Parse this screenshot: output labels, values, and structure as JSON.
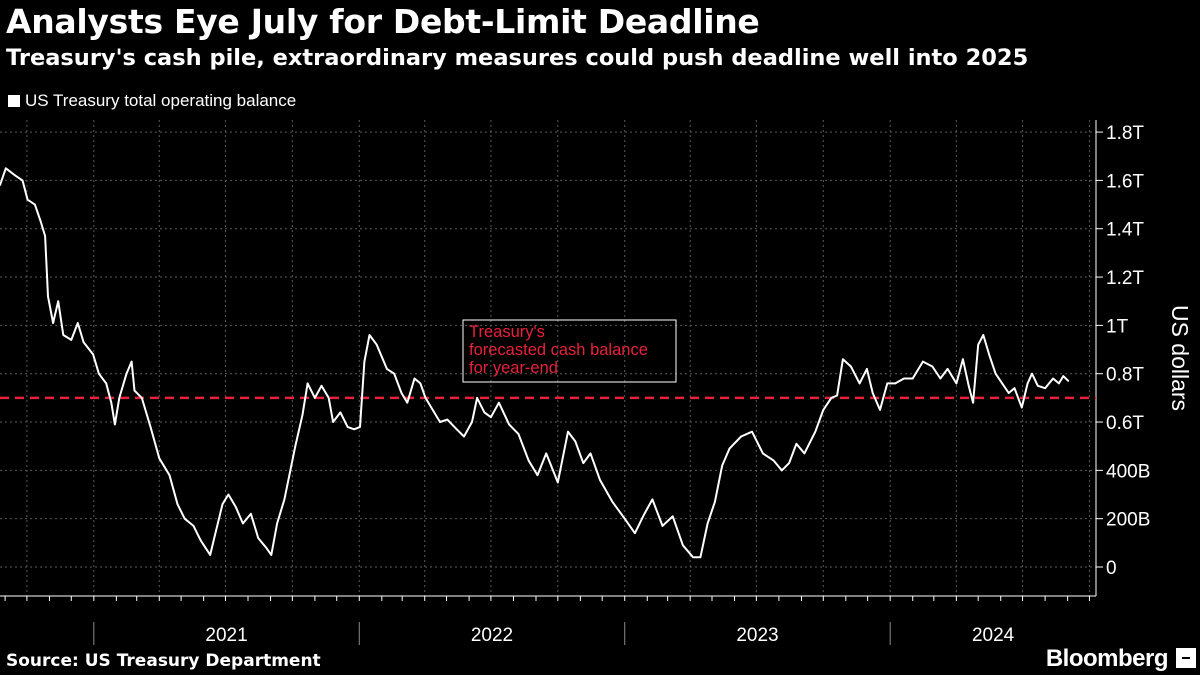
{
  "header": {
    "title": "Analysts Eye July for Debt-Limit Deadline",
    "subtitle": "Treasury's cash pile, extraordinary measures could push deadline well into 2025"
  },
  "legend": {
    "label": "US Treasury total operating balance"
  },
  "footer": {
    "source": "Source: US Treasury Department",
    "brand": "Bloomberg"
  },
  "chart_data": {
    "type": "line",
    "title": "Analysts Eye July for Debt-Limit Deadline",
    "subtitle": "Treasury's cash pile, extraordinary measures could push deadline well into 2025",
    "ylabel": "US dollars",
    "xlabel": "",
    "ylim": [
      -120,
      1850
    ],
    "xlim": [
      "2020-08-25",
      "2024-10-10"
    ],
    "grid": true,
    "legend_position": "top-left",
    "y_ticks": [
      {
        "value": 0,
        "label": "0"
      },
      {
        "value": 200,
        "label": "200B"
      },
      {
        "value": 400,
        "label": "400B"
      },
      {
        "value": 600,
        "label": "0.6T"
      },
      {
        "value": 800,
        "label": "0.8T"
      },
      {
        "value": 1000,
        "label": "1T"
      },
      {
        "value": 1200,
        "label": "1.2T"
      },
      {
        "value": 1400,
        "label": "1.4T"
      },
      {
        "value": 1600,
        "label": "1.6T"
      },
      {
        "value": 1800,
        "label": "1.8T"
      }
    ],
    "x_year_labels": [
      "2021",
      "2022",
      "2023",
      "2024"
    ],
    "reference_line": {
      "value": 700,
      "color": "#e8213a",
      "label": "Treasury's\nforecasted cash balance\nfor year-end"
    },
    "series": [
      {
        "name": "US Treasury total operating balance",
        "color": "#ffffff",
        "points": [
          [
            "2020-08-25",
            1580
          ],
          [
            "2020-09-02",
            1650
          ],
          [
            "2020-09-15",
            1620
          ],
          [
            "2020-09-25",
            1600
          ],
          [
            "2020-10-02",
            1520
          ],
          [
            "2020-10-12",
            1500
          ],
          [
            "2020-10-20",
            1430
          ],
          [
            "2020-10-26",
            1370
          ],
          [
            "2020-10-30",
            1120
          ],
          [
            "2020-11-06",
            1010
          ],
          [
            "2020-11-13",
            1100
          ],
          [
            "2020-11-20",
            960
          ],
          [
            "2020-12-01",
            940
          ],
          [
            "2020-12-10",
            1010
          ],
          [
            "2020-12-18",
            930
          ],
          [
            "2020-12-31",
            880
          ],
          [
            "2021-01-08",
            800
          ],
          [
            "2021-01-18",
            760
          ],
          [
            "2021-01-25",
            680
          ],
          [
            "2021-01-30",
            590
          ],
          [
            "2021-02-05",
            700
          ],
          [
            "2021-02-15",
            800
          ],
          [
            "2021-02-22",
            850
          ],
          [
            "2021-02-26",
            730
          ],
          [
            "2021-03-08",
            700
          ],
          [
            "2021-03-20",
            580
          ],
          [
            "2021-04-01",
            450
          ],
          [
            "2021-04-15",
            380
          ],
          [
            "2021-04-26",
            260
          ],
          [
            "2021-05-06",
            200
          ],
          [
            "2021-05-18",
            170
          ],
          [
            "2021-05-28",
            110
          ],
          [
            "2021-06-10",
            50
          ],
          [
            "2021-06-18",
            150
          ],
          [
            "2021-06-27",
            260
          ],
          [
            "2021-07-05",
            300
          ],
          [
            "2021-07-15",
            250
          ],
          [
            "2021-07-25",
            180
          ],
          [
            "2021-08-05",
            220
          ],
          [
            "2021-08-15",
            120
          ],
          [
            "2021-08-26",
            80
          ],
          [
            "2021-09-02",
            50
          ],
          [
            "2021-09-10",
            180
          ],
          [
            "2021-09-20",
            280
          ],
          [
            "2021-10-05",
            500
          ],
          [
            "2021-10-15",
            630
          ],
          [
            "2021-10-22",
            760
          ],
          [
            "2021-11-01",
            700
          ],
          [
            "2021-11-10",
            750
          ],
          [
            "2021-11-20",
            700
          ],
          [
            "2021-11-26",
            600
          ],
          [
            "2021-12-06",
            640
          ],
          [
            "2021-12-16",
            580
          ],
          [
            "2021-12-25",
            570
          ],
          [
            "2022-01-02",
            580
          ],
          [
            "2022-01-08",
            850
          ],
          [
            "2022-01-15",
            960
          ],
          [
            "2022-01-25",
            920
          ],
          [
            "2022-02-08",
            820
          ],
          [
            "2022-02-18",
            800
          ],
          [
            "2022-02-28",
            720
          ],
          [
            "2022-03-08",
            680
          ],
          [
            "2022-03-18",
            780
          ],
          [
            "2022-03-26",
            760
          ],
          [
            "2022-04-02",
            700
          ],
          [
            "2022-04-12",
            650
          ],
          [
            "2022-04-22",
            600
          ],
          [
            "2022-05-02",
            610
          ],
          [
            "2022-05-15",
            570
          ],
          [
            "2022-05-25",
            540
          ],
          [
            "2022-06-05",
            600
          ],
          [
            "2022-06-12",
            700
          ],
          [
            "2022-06-22",
            640
          ],
          [
            "2022-07-01",
            620
          ],
          [
            "2022-07-12",
            680
          ],
          [
            "2022-07-26",
            590
          ],
          [
            "2022-08-08",
            550
          ],
          [
            "2022-08-22",
            440
          ],
          [
            "2022-09-03",
            380
          ],
          [
            "2022-09-15",
            470
          ],
          [
            "2022-10-01",
            350
          ],
          [
            "2022-10-15",
            560
          ],
          [
            "2022-10-25",
            520
          ],
          [
            "2022-11-05",
            430
          ],
          [
            "2022-11-15",
            470
          ],
          [
            "2022-11-28",
            360
          ],
          [
            "2022-12-15",
            270
          ],
          [
            "2023-01-01",
            200
          ],
          [
            "2023-01-15",
            140
          ],
          [
            "2023-01-28",
            220
          ],
          [
            "2023-02-08",
            280
          ],
          [
            "2023-02-22",
            170
          ],
          [
            "2023-03-08",
            210
          ],
          [
            "2023-03-22",
            90
          ],
          [
            "2023-04-05",
            40
          ],
          [
            "2023-04-15",
            40
          ],
          [
            "2023-04-25",
            180
          ],
          [
            "2023-05-05",
            270
          ],
          [
            "2023-05-15",
            420
          ],
          [
            "2023-05-25",
            490
          ],
          [
            "2023-06-10",
            540
          ],
          [
            "2023-06-25",
            560
          ],
          [
            "2023-07-10",
            470
          ],
          [
            "2023-07-25",
            440
          ],
          [
            "2023-08-05",
            400
          ],
          [
            "2023-08-15",
            430
          ],
          [
            "2023-08-25",
            510
          ],
          [
            "2023-09-05",
            470
          ],
          [
            "2023-09-20",
            560
          ],
          [
            "2023-10-01",
            650
          ],
          [
            "2023-10-12",
            700
          ],
          [
            "2023-10-20",
            710
          ],
          [
            "2023-10-28",
            860
          ],
          [
            "2023-11-08",
            830
          ],
          [
            "2023-11-20",
            760
          ],
          [
            "2023-11-30",
            820
          ],
          [
            "2023-12-08",
            720
          ],
          [
            "2023-12-18",
            650
          ],
          [
            "2023-12-28",
            760
          ],
          [
            "2024-01-08",
            760
          ],
          [
            "2024-01-20",
            780
          ],
          [
            "2024-02-01",
            780
          ],
          [
            "2024-02-15",
            850
          ],
          [
            "2024-02-28",
            830
          ],
          [
            "2024-03-10",
            780
          ],
          [
            "2024-03-20",
            820
          ],
          [
            "2024-04-01",
            760
          ],
          [
            "2024-04-10",
            860
          ],
          [
            "2024-04-18",
            750
          ],
          [
            "2024-04-24",
            680
          ],
          [
            "2024-05-01",
            920
          ],
          [
            "2024-05-08",
            960
          ],
          [
            "2024-05-16",
            880
          ],
          [
            "2024-05-25",
            800
          ],
          [
            "2024-06-03",
            760
          ],
          [
            "2024-06-12",
            720
          ],
          [
            "2024-06-20",
            740
          ],
          [
            "2024-06-30",
            660
          ],
          [
            "2024-07-08",
            760
          ],
          [
            "2024-07-14",
            800
          ],
          [
            "2024-07-22",
            750
          ],
          [
            "2024-08-01",
            740
          ],
          [
            "2024-08-12",
            780
          ],
          [
            "2024-08-20",
            760
          ],
          [
            "2024-08-26",
            790
          ],
          [
            "2024-09-02",
            770
          ]
        ]
      }
    ]
  }
}
